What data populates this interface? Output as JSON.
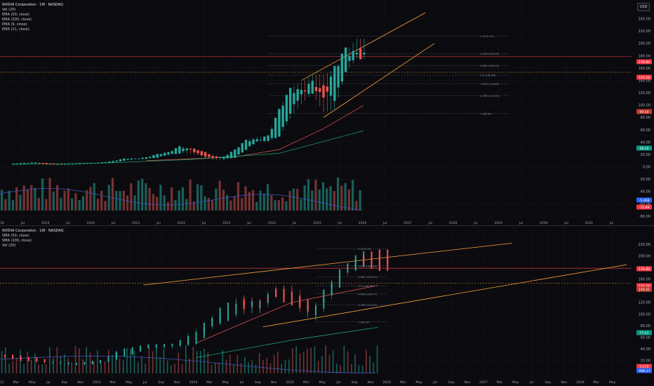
{
  "top": {
    "legend": {
      "title": "NVIDIA Corporation · 1M · NASDAQ",
      "items": [
        "Vol (20)",
        "EMA (50, close)",
        "EMA (200, close)",
        "EMA (9, close)",
        "EMA (21, close)"
      ]
    },
    "currency": "USD",
    "y_ticks": [
      "240.00",
      "220.00",
      "200.00",
      "180.00",
      "160.00",
      "140.00",
      "120.00",
      "100.00",
      "80.00",
      "60.00",
      "40.00",
      "20.00",
      "0.00",
      "-20.00",
      "-40.00",
      "-60.00",
      "-80.00"
    ],
    "x_labels": [
      "2018",
      "Jul",
      "2019",
      "Jul",
      "2020",
      "Jul",
      "2021",
      "Jul",
      "2022",
      "Jul",
      "2023",
      "Jul",
      "2024",
      "Jul",
      "2025",
      "Jul",
      "2026",
      "Jul",
      "2027",
      "Jul",
      "2028",
      "Jul",
      "2029",
      "Jul",
      "2030",
      "Jul",
      "2031",
      "Jul"
    ],
    "fib_labels": [
      "0.236 (183.49)",
      "0.382 (164.25)",
      "0.5 (148.64)",
      "0.618 (134.86)",
      "0.786 (115.55)",
      "1 (86.42)",
      "0 (212.19)"
    ],
    "price_tags": [
      {
        "text": "178.88",
        "color": "#f23645"
      },
      {
        "text": "153.28",
        "color": "#f23645"
      },
      {
        "text": "99.50",
        "color": "#c1392b"
      },
      {
        "text": "58.35",
        "color": "#089981"
      },
      {
        "text": "-5.468",
        "color": "#2962ff"
      },
      {
        "text": "-72.89",
        "color": "#f23645"
      }
    ]
  },
  "bottom": {
    "legend": {
      "title": "NVIDIA Corporation · 1W · NASDAQ",
      "items": [
        "SMA (50, close)",
        "SMA (200, close)",
        "Vol (20)"
      ]
    },
    "y_ticks": [
      "220.00",
      "200.00",
      "180.00",
      "160.00",
      "140.00",
      "120.00",
      "100.00",
      "80.00",
      "60.00",
      "40.00",
      "20.00"
    ],
    "x_labels": [
      "2022",
      "Mar",
      "May",
      "Jul",
      "Sep",
      "Nov",
      "2023",
      "Mar",
      "May",
      "Jul",
      "Sep",
      "Nov",
      "2024",
      "Mar",
      "May",
      "Jul",
      "Sep",
      "Nov",
      "2025",
      "Mar",
      "May",
      "Jul",
      "Sep",
      "Nov",
      "2026",
      "Mar",
      "May",
      "Jul",
      "Sep",
      "Nov",
      "2027",
      "Mar",
      "May",
      "Jul",
      "Sep",
      "Nov",
      "2028",
      "Mar",
      "May"
    ],
    "fib_labels": [
      "0 (212.19)",
      "0.236 (182.90)",
      "0.382 (164.25)",
      "0.5 (148.64)",
      "0.618 (134.77)",
      "0.786 (115.59)",
      "1 (86.42)"
    ],
    "price_tags": [
      {
        "text": "178.88",
        "color": "#f23645"
      },
      {
        "text": "153.28",
        "color": "#f23645"
      },
      {
        "text": "149.41",
        "color": "#c1392b"
      },
      {
        "text": "77.21",
        "color": "#089981"
      },
      {
        "text": "5.575",
        "color": "#f23645"
      },
      {
        "text": "-986.17",
        "color": "#2962ff"
      }
    ]
  },
  "colors": {
    "up": "#26a69a",
    "down": "#ef5350",
    "channel": "#f7a03a",
    "ema_red": "#d84f4f",
    "ema_green": "#1e9c6e",
    "vol_ma": "#3f51b5"
  },
  "chart_data": [
    {
      "type": "candlestick",
      "title": "NVIDIA Corporation · 1M · NASDAQ",
      "ylim": [
        -80,
        250
      ],
      "x_range": [
        "2018-01",
        "2031-12"
      ],
      "reference_lines": [
        178.88,
        153.28
      ],
      "fib_levels": [
        212.19,
        183.49,
        164.25,
        148.64,
        134.86,
        115.55,
        86.42
      ],
      "candles_monthly": [
        [
          "2018-01",
          4,
          5,
          6,
          4
        ],
        [
          "2018-04",
          5,
          6,
          7,
          5
        ],
        [
          "2018-07",
          6,
          7,
          7,
          5
        ],
        [
          "2018-10",
          6,
          4,
          7,
          3
        ],
        [
          "2019-01",
          4,
          4,
          5,
          3
        ],
        [
          "2019-04",
          4,
          4,
          5,
          3
        ],
        [
          "2019-07",
          4,
          5,
          5,
          4
        ],
        [
          "2019-10",
          5,
          6,
          6,
          5
        ],
        [
          "2020-01",
          6,
          7,
          8,
          5
        ],
        [
          "2020-04",
          7,
          9,
          10,
          7
        ],
        [
          "2020-07",
          10,
          13,
          14,
          10
        ],
        [
          "2020-10",
          13,
          13,
          14,
          12
        ],
        [
          "2021-01",
          13,
          15,
          16,
          13
        ],
        [
          "2021-04",
          15,
          20,
          21,
          15
        ],
        [
          "2021-07",
          20,
          23,
          24,
          19
        ],
        [
          "2021-10",
          22,
          32,
          35,
          22
        ],
        [
          "2022-01",
          30,
          27,
          31,
          21
        ],
        [
          "2022-04",
          26,
          18,
          27,
          16
        ],
        [
          "2022-07",
          18,
          14,
          19,
          11
        ],
        [
          "2022-10",
          13,
          16,
          17,
          11
        ],
        [
          "2023-01",
          15,
          27,
          28,
          15
        ],
        [
          "2023-04",
          28,
          42,
          44,
          27
        ],
        [
          "2023-07",
          42,
          43,
          50,
          40
        ],
        [
          "2023-10",
          43,
          49,
          51,
          40
        ],
        [
          "2024-01",
          50,
          90,
          97,
          48
        ],
        [
          "2024-04",
          88,
          123,
          131,
          76
        ],
        [
          "2024-07",
          120,
          120,
          140,
          100
        ],
        [
          "2024-10",
          121,
          134,
          152,
          116
        ],
        [
          "2025-01",
          135,
          108,
          153,
          87
        ],
        [
          "2025-04",
          109,
          157,
          160,
          90
        ],
        [
          "2025-07",
          157,
          186,
          190,
          150
        ],
        [
          "2025-10",
          186,
          178,
          212,
          172
        ]
      ],
      "ema_50": [
        [
          2021.0,
          10
        ],
        [
          2022.0,
          13
        ],
        [
          2023.0,
          16
        ],
        [
          2024.0,
          28
        ],
        [
          2025.0,
          62
        ],
        [
          2025.9,
          99.5
        ]
      ],
      "ema_200": [
        [
          2018.0,
          4
        ],
        [
          2020.0,
          6
        ],
        [
          2022.0,
          12
        ],
        [
          2024.0,
          22
        ],
        [
          2025.9,
          58.35
        ]
      ],
      "channel": [
        [
          [
            2024.5,
            140
          ],
          [
            2027.3,
            250
          ]
        ],
        [
          [
            2025.0,
            80
          ],
          [
            2027.5,
            200
          ]
        ]
      ]
    },
    {
      "type": "candlestick",
      "title": "NVIDIA Corporation · 1W · NASDAQ",
      "ylim": [
        10,
        225
      ],
      "x_range": [
        "2022-01",
        "2028-06"
      ],
      "reference_lines": [
        178.88,
        153.28
      ],
      "fib_levels": [
        212.19,
        182.9,
        164.25,
        148.64,
        134.77,
        115.59,
        86.42
      ],
      "candles_weekly_sampled": [
        [
          "2022-01",
          30,
          25,
          31,
          22
        ],
        [
          "2022-04",
          26,
          19,
          27,
          17
        ],
        [
          "2022-07",
          18,
          17,
          19,
          14
        ],
        [
          "2022-10",
          13,
          15,
          17,
          11
        ],
        [
          "2023-01",
          15,
          20,
          21,
          14
        ],
        [
          "2023-04",
          27,
          39,
          41,
          26
        ],
        [
          "2023-07",
          42,
          46,
          48,
          41
        ],
        [
          "2023-10",
          45,
          47,
          50,
          40
        ],
        [
          "2024-01",
          49,
          66,
          72,
          48
        ],
        [
          "2024-03",
          82,
          90,
          95,
          78
        ],
        [
          "2024-05",
          90,
          115,
          120,
          88
        ],
        [
          "2024-07",
          125,
          110,
          135,
          100
        ],
        [
          "2024-09",
          112,
          118,
          125,
          100
        ],
        [
          "2024-11",
          140,
          135,
          150,
          130
        ],
        [
          "2025-01",
          138,
          120,
          153,
          115
        ],
        [
          "2025-03",
          118,
          105,
          125,
          95
        ],
        [
          "2025-04",
          100,
          110,
          115,
          87
        ],
        [
          "2025-06",
          135,
          150,
          158,
          130
        ],
        [
          "2025-08",
          175,
          180,
          184,
          170
        ],
        [
          "2025-10",
          185,
          200,
          212,
          180
        ],
        [
          "2025-11",
          205,
          178,
          210,
          175
        ]
      ],
      "sma_50": [
        [
          2024.0,
          50
        ],
        [
          2025.0,
          120
        ],
        [
          2025.9,
          149.41
        ]
      ],
      "sma_200": [
        [
          2024.0,
          25
        ],
        [
          2025.0,
          55
        ],
        [
          2025.9,
          77.21
        ]
      ],
      "channel": [
        [
          [
            2023.45,
            150
          ],
          [
            2027.3,
            222
          ]
        ],
        [
          [
            2024.7,
            78
          ],
          [
            2028.5,
            185
          ]
        ]
      ]
    }
  ]
}
